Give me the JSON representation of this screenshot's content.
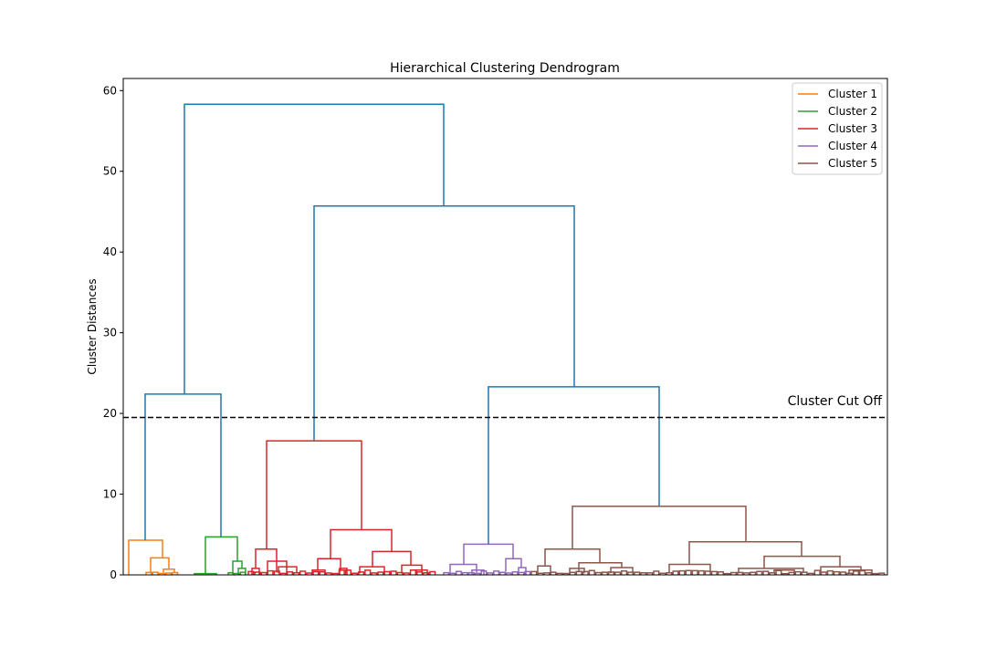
{
  "chart_data": {
    "type": "dendrogram",
    "title": "Hierarchical Clustering Dendrogram",
    "xlabel": "",
    "ylabel": "Cluster Distances",
    "ylim": [
      0,
      61.5
    ],
    "yticks": [
      0,
      10,
      20,
      30,
      40,
      50,
      60
    ],
    "cutoff": {
      "value": 19.5,
      "label": "Cluster Cut Off",
      "color": "#000000"
    },
    "link_color": "#1f77b4",
    "legend": {
      "position": "top-right",
      "entries": [
        {
          "label": "Cluster 1",
          "color": "#ff7f0e"
        },
        {
          "label": "Cluster 2",
          "color": "#2ca02c"
        },
        {
          "label": "Cluster 3",
          "color": "#d62728"
        },
        {
          "label": "Cluster 4",
          "color": "#9467bd"
        },
        {
          "label": "Cluster 5",
          "color": "#8c564b"
        }
      ]
    },
    "merge_heights": {
      "root": 58.3,
      "left_group": 22.4,
      "right_group": 45.7,
      "cluster_4_5_merge": 23.3,
      "cluster_1_top": 4.3,
      "cluster_2_top": 4.7,
      "cluster_3_top": 16.6,
      "cluster_4_top": 3.8,
      "cluster_5_top": 8.5
    }
  }
}
